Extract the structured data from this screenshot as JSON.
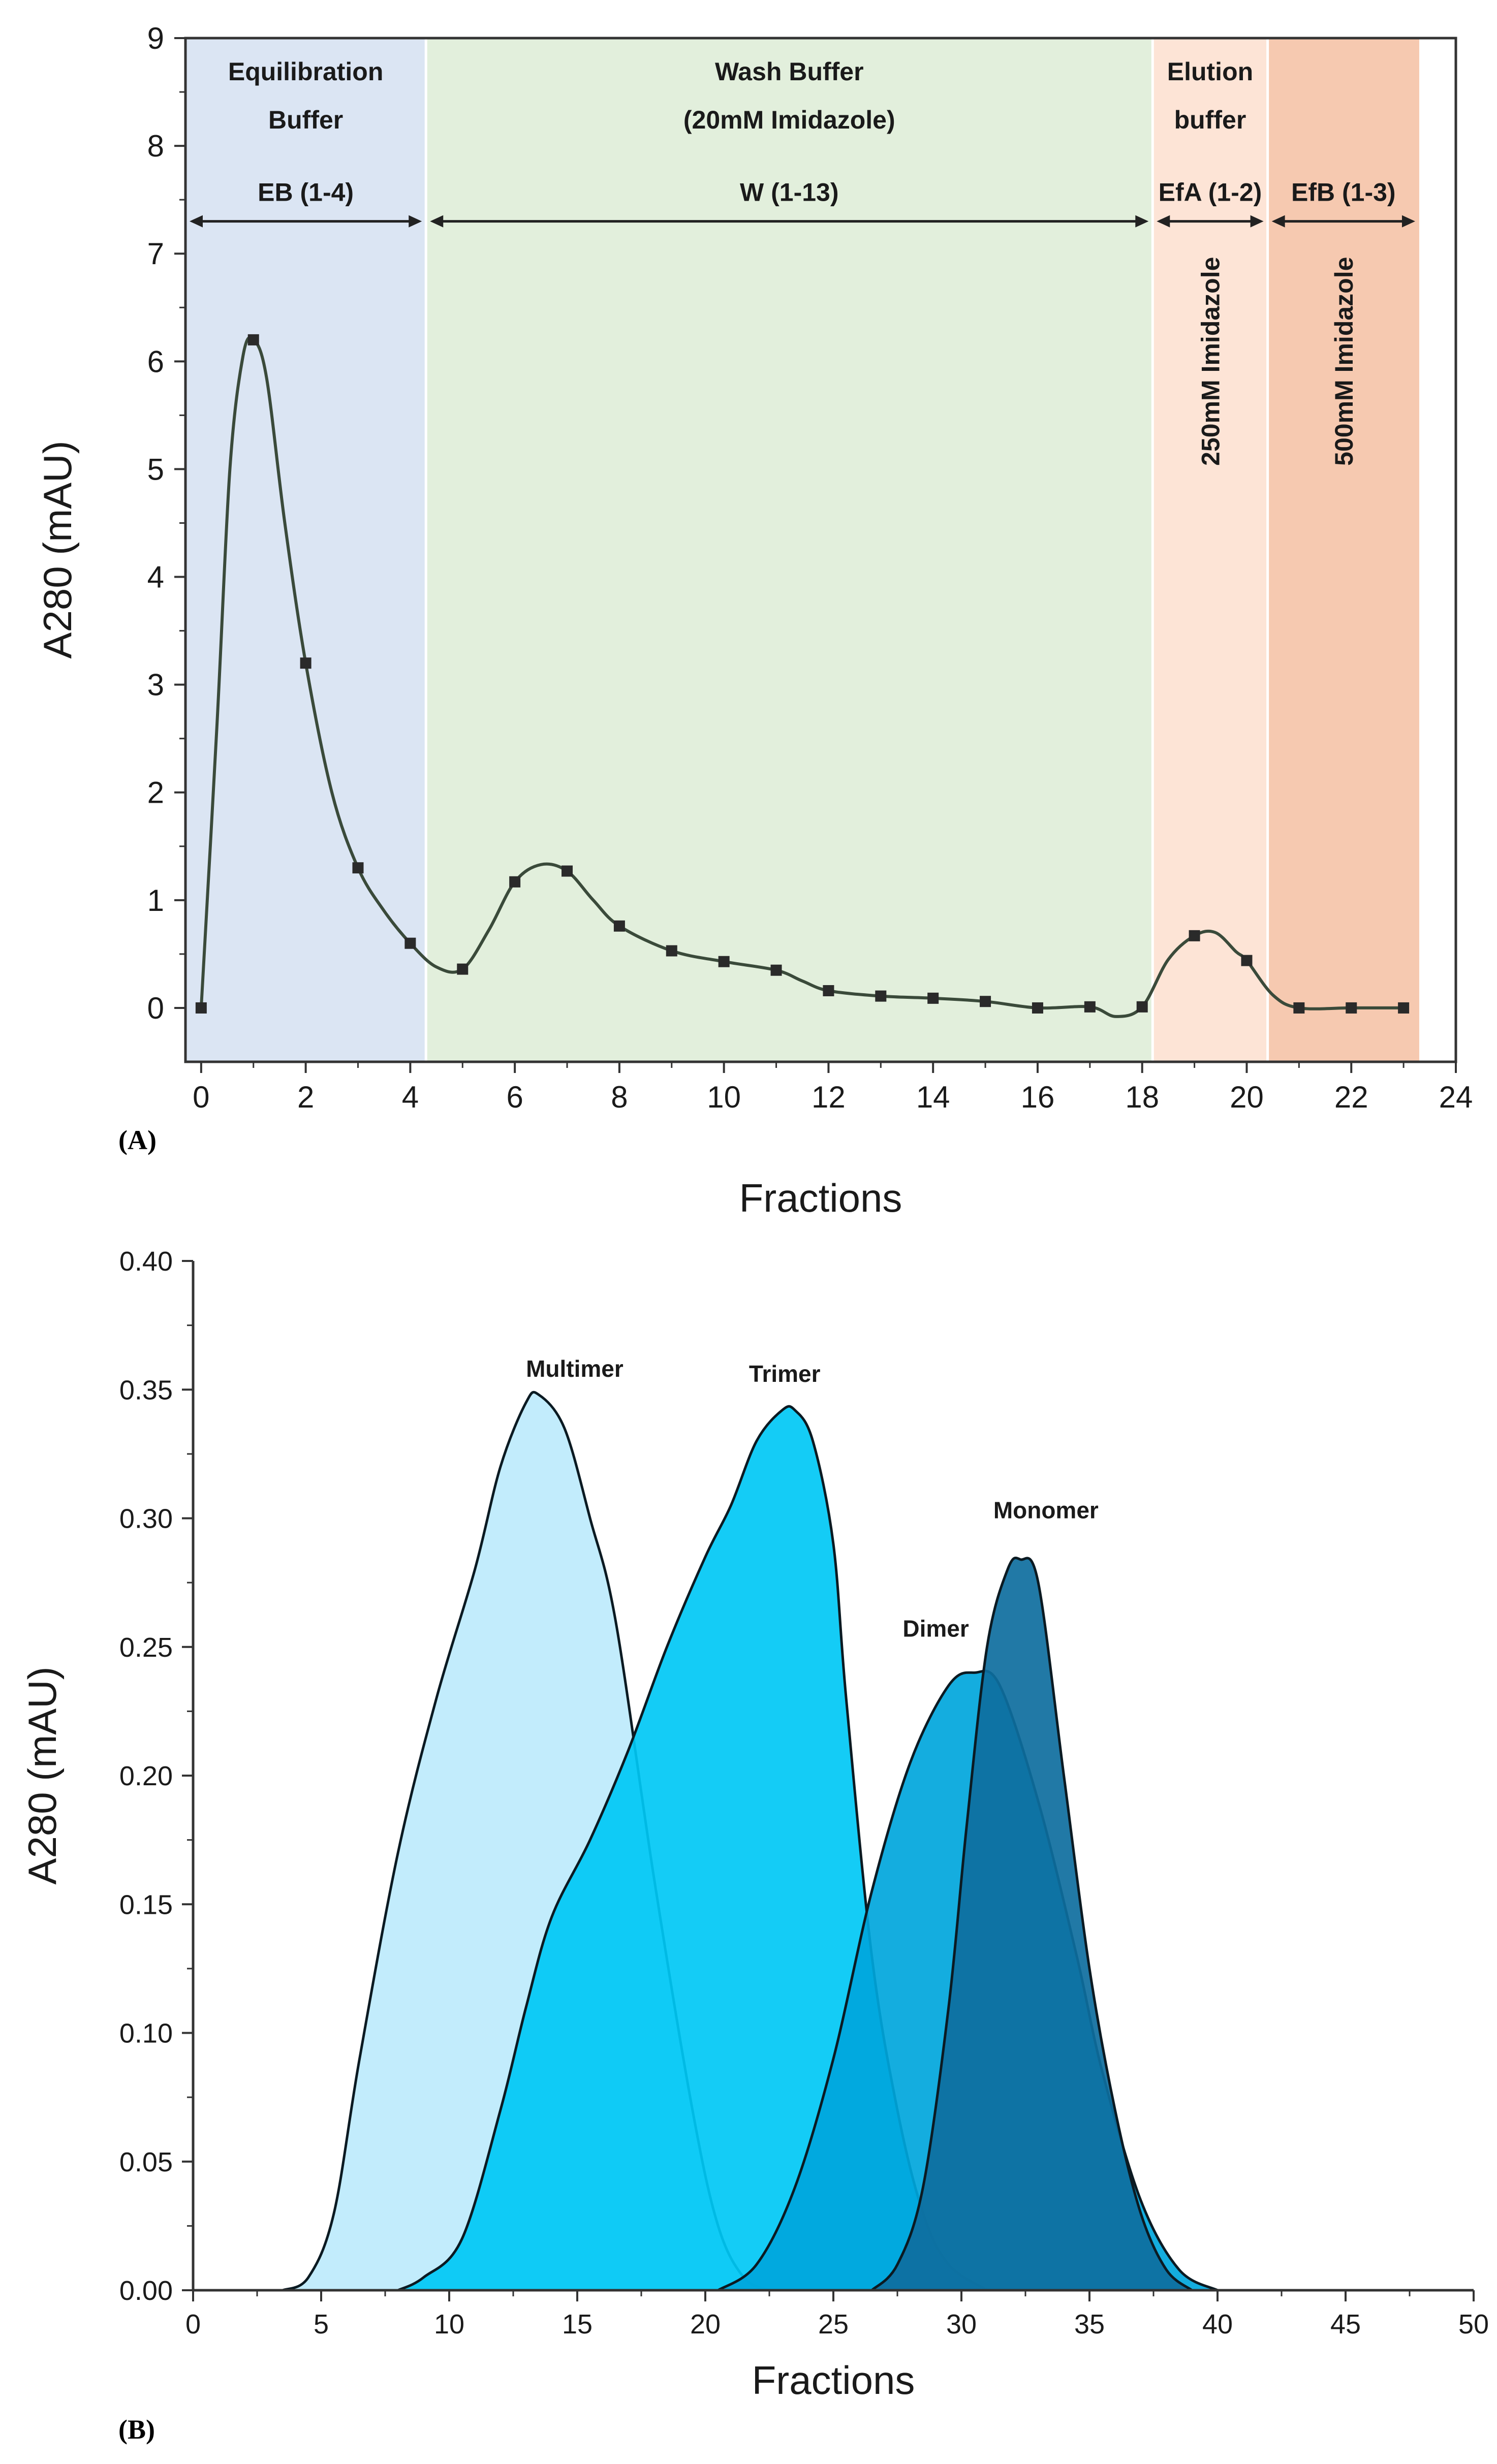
{
  "chart_data": [
    {
      "panel": "(A)",
      "type": "line",
      "xlabel": "Fractions",
      "ylabel": "A280 (mAU)",
      "xlim": [
        -0.3,
        24
      ],
      "ylim": [
        -0.5,
        9
      ],
      "xticks": [
        0,
        2,
        4,
        6,
        8,
        10,
        12,
        14,
        16,
        18,
        20,
        22,
        24
      ],
      "yticks": [
        0,
        1,
        2,
        3,
        4,
        5,
        6,
        7,
        8,
        9
      ],
      "x": [
        0,
        1,
        2,
        3,
        4,
        5,
        6,
        7,
        8,
        9,
        10,
        11,
        12,
        13,
        14,
        15,
        16,
        17,
        18,
        19,
        20,
        21,
        22,
        23
      ],
      "y": [
        0,
        6.2,
        3.2,
        1.3,
        0.6,
        0.36,
        1.17,
        1.27,
        0.76,
        0.53,
        0.43,
        0.35,
        0.16,
        0.11,
        0.09,
        0.06,
        0.0,
        0.01,
        0.01,
        0.67,
        0.44,
        0.0,
        0.0,
        0.0
      ],
      "curve_points": [
        [
          0,
          0
        ],
        [
          0.3,
          2.6
        ],
        [
          0.55,
          5.0
        ],
        [
          0.8,
          6.05
        ],
        [
          1.0,
          6.2
        ],
        [
          1.25,
          5.85
        ],
        [
          1.6,
          4.5
        ],
        [
          2.0,
          3.2
        ],
        [
          2.5,
          2.0
        ],
        [
          3.0,
          1.3
        ],
        [
          3.5,
          0.9
        ],
        [
          4.0,
          0.6
        ],
        [
          4.5,
          0.38
        ],
        [
          5.0,
          0.36
        ],
        [
          5.5,
          0.72
        ],
        [
          6.0,
          1.17
        ],
        [
          6.5,
          1.33
        ],
        [
          7.0,
          1.27
        ],
        [
          7.5,
          1.0
        ],
        [
          8.0,
          0.76
        ],
        [
          9.0,
          0.53
        ],
        [
          10.0,
          0.43
        ],
        [
          11.0,
          0.35
        ],
        [
          11.5,
          0.25
        ],
        [
          12.0,
          0.16
        ],
        [
          13.0,
          0.11
        ],
        [
          14.0,
          0.09
        ],
        [
          15.0,
          0.06
        ],
        [
          16.0,
          0.0
        ],
        [
          17.0,
          0.01
        ],
        [
          17.5,
          -0.08
        ],
        [
          18.0,
          0.01
        ],
        [
          18.5,
          0.45
        ],
        [
          19.0,
          0.67
        ],
        [
          19.4,
          0.7
        ],
        [
          19.8,
          0.52
        ],
        [
          20.0,
          0.44
        ],
        [
          20.5,
          0.12
        ],
        [
          21.0,
          0.0
        ],
        [
          22.0,
          0.0
        ],
        [
          23.0,
          0.0
        ]
      ],
      "regions": [
        {
          "x0": -0.3,
          "x1": 4.3,
          "color": "#dbe5f3",
          "title_lines": [
            "Equilibration",
            "Buffer"
          ],
          "arrow_label": "EB (1-4)"
        },
        {
          "x0": 4.3,
          "x1": 18.2,
          "color": "#e2efdc",
          "title_lines": [
            "Wash Buffer",
            "(20mM Imidazole)"
          ],
          "arrow_label": "W (1-13)"
        },
        {
          "x0": 18.2,
          "x1": 20.4,
          "color": "#fde4d6",
          "title_lines": [
            "Elution",
            "buffer"
          ],
          "arrow_label": "EfA (1-2)",
          "vertical_label": "250mM Imidazole"
        },
        {
          "x0": 20.4,
          "x1": 23.3,
          "color": "#f6c9b0",
          "title_lines": [],
          "arrow_label": "EfB (1-3)",
          "vertical_label": "500mM Imidazole"
        }
      ],
      "line_color": "#3a4a3a"
    },
    {
      "panel": "(B)",
      "type": "area",
      "xlabel": "Fractions",
      "ylabel": "A280 (mAU)",
      "xlim": [
        0,
        50
      ],
      "ylim": [
        0,
        0.4
      ],
      "xticks": [
        0,
        5,
        10,
        15,
        20,
        25,
        30,
        35,
        40,
        45,
        50
      ],
      "yticks": [
        0.0,
        0.05,
        0.1,
        0.15,
        0.2,
        0.25,
        0.3,
        0.35,
        0.4
      ],
      "ytick_labels": [
        "0.00",
        "0.05",
        "0.10",
        "0.15",
        "0.20",
        "0.25",
        "0.30",
        "0.35",
        "0.40"
      ],
      "series": [
        {
          "name": "Multimer",
          "color": "#bdeafc",
          "label_at": [
            14.9,
            0.355
          ],
          "points": [
            [
              3.5,
              0
            ],
            [
              4.5,
              0.005
            ],
            [
              5.5,
              0.03
            ],
            [
              6.5,
              0.09
            ],
            [
              8,
              0.17
            ],
            [
              9.5,
              0.23
            ],
            [
              11,
              0.28
            ],
            [
              12,
              0.32
            ],
            [
              13,
              0.345
            ],
            [
              13.5,
              0.348
            ],
            [
              14.5,
              0.335
            ],
            [
              15.5,
              0.3
            ],
            [
              16.5,
              0.26
            ],
            [
              18,
              0.16
            ],
            [
              19.5,
              0.07
            ],
            [
              20.5,
              0.025
            ],
            [
              21.5,
              0.005
            ],
            [
              22.5,
              0
            ]
          ]
        },
        {
          "name": "Trimer",
          "color": "#00c8f5",
          "label_at": [
            23.1,
            0.353
          ],
          "points": [
            [
              8,
              0
            ],
            [
              9,
              0.005
            ],
            [
              10.5,
              0.02
            ],
            [
              12,
              0.07
            ],
            [
              13,
              0.11
            ],
            [
              14,
              0.145
            ],
            [
              15.5,
              0.175
            ],
            [
              17,
              0.21
            ],
            [
              18.5,
              0.25
            ],
            [
              20,
              0.285
            ],
            [
              21,
              0.305
            ],
            [
              22,
              0.33
            ],
            [
              23,
              0.342
            ],
            [
              23.5,
              0.342
            ],
            [
              24.2,
              0.33
            ],
            [
              25,
              0.29
            ],
            [
              25.5,
              0.23
            ],
            [
              26.5,
              0.13
            ],
            [
              27.5,
              0.07
            ],
            [
              28.5,
              0.03
            ],
            [
              29.5,
              0.01
            ],
            [
              31,
              0
            ]
          ]
        },
        {
          "name": "Dimer",
          "color": "#00a6dc",
          "label_at": [
            29.0,
            0.254
          ],
          "points": [
            [
              20.5,
              0
            ],
            [
              22,
              0.01
            ],
            [
              23.5,
              0.04
            ],
            [
              25,
              0.09
            ],
            [
              26.5,
              0.155
            ],
            [
              28,
              0.205
            ],
            [
              29.5,
              0.235
            ],
            [
              30.5,
              0.24
            ],
            [
              31.5,
              0.235
            ],
            [
              33,
              0.19
            ],
            [
              34.5,
              0.13
            ],
            [
              35.5,
              0.085
            ],
            [
              37,
              0.035
            ],
            [
              38.5,
              0.008
            ],
            [
              40,
              0
            ]
          ]
        },
        {
          "name": "Monomer",
          "color": "#0e6e9e",
          "label_at": [
            33.3,
            0.3
          ],
          "points": [
            [
              26.5,
              0
            ],
            [
              27.5,
              0.01
            ],
            [
              28.5,
              0.04
            ],
            [
              29.5,
              0.11
            ],
            [
              30.2,
              0.18
            ],
            [
              31,
              0.25
            ],
            [
              31.8,
              0.28
            ],
            [
              32.3,
              0.284
            ],
            [
              33,
              0.275
            ],
            [
              34,
              0.2
            ],
            [
              35,
              0.125
            ],
            [
              36,
              0.07
            ],
            [
              37,
              0.03
            ],
            [
              38,
              0.008
            ],
            [
              39,
              0
            ]
          ]
        }
      ]
    }
  ]
}
